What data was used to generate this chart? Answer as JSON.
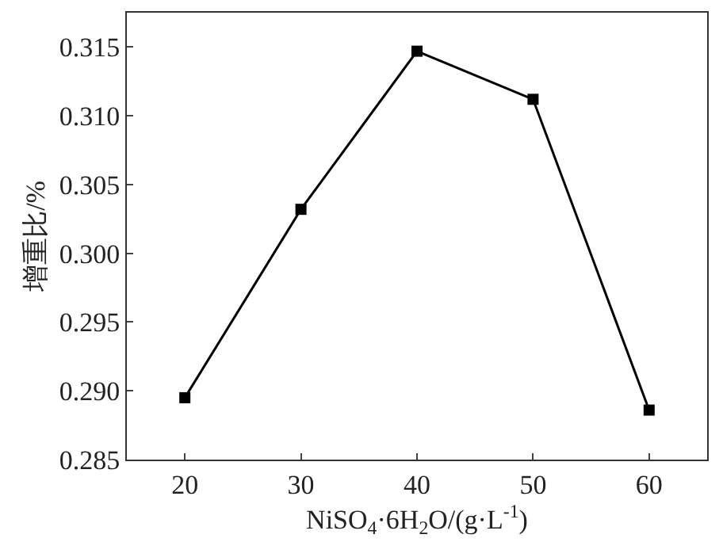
{
  "chart_data": {
    "type": "line",
    "xlabel": "NiSO$_{4}$·6H$_{2}$O/(g·L$^{-1}$)",
    "ylabel": "增重比/%",
    "x": [
      20,
      30,
      40,
      50,
      60
    ],
    "series": [
      {
        "color": "#000000",
        "values": [
          0.2895,
          0.3032,
          0.3147,
          0.3112,
          0.2886
        ]
      }
    ],
    "xlim": [
      15,
      65
    ],
    "xticks": [
      20,
      30,
      40,
      50,
      60
    ],
    "ylim": [
      0.285,
      0.3175
    ],
    "yticks": [
      {
        "value": 0.285,
        "label": "0.285"
      },
      {
        "value": 0.29,
        "label": "0.290"
      },
      {
        "value": 0.295,
        "label": "0.295"
      },
      {
        "value": 0.3,
        "label": "0.300"
      },
      {
        "value": 0.305,
        "label": "0.305"
      },
      {
        "value": 0.31,
        "label": "0.310"
      },
      {
        "value": 0.315,
        "label": "0.315"
      }
    ],
    "marker": "square",
    "line_style": "solid"
  }
}
